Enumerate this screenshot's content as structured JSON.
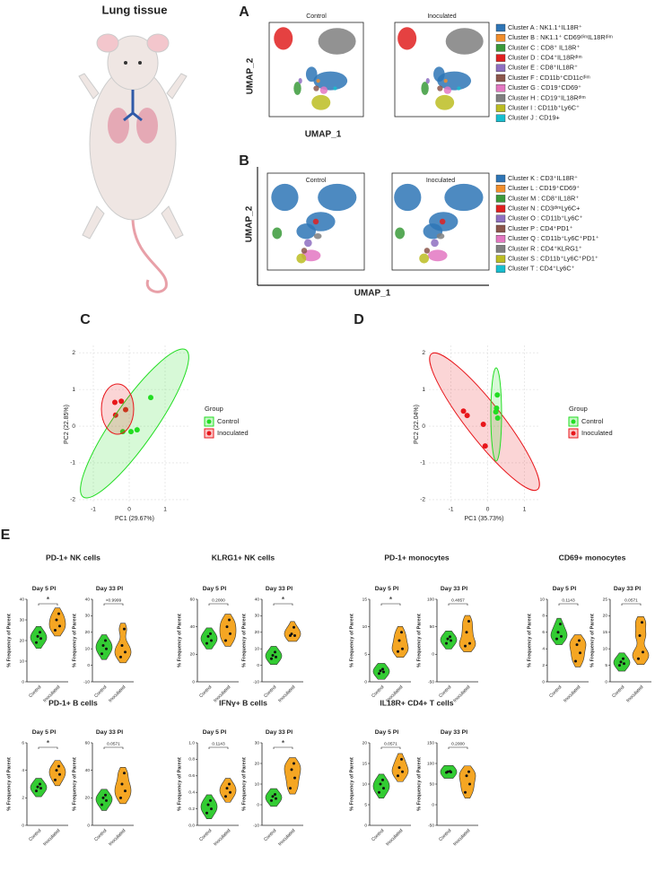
{
  "figure": {
    "panel_labels": [
      "A",
      "B",
      "C",
      "D",
      "E"
    ],
    "tissue_label": "Lung tissue",
    "umap_panels": [
      {
        "conditions": [
          "Control",
          "Inoculated"
        ],
        "x_label": "UMAP_1",
        "y_label": "UMAP_2",
        "clusters": [
          {
            "name": "Cluster A : NK1.1⁺IL18R⁺",
            "color": "#2e75b6"
          },
          {
            "name": "Cluster B : NK1.1⁺ CD69ᵈⁱᵐIL18Rᵈⁱᵐ",
            "color": "#f28e2b"
          },
          {
            "name": "Cluster C : CD8⁺ IL18R⁺",
            "color": "#3a9a3a"
          },
          {
            "name": "Cluster D : CD4⁺IL18Rᵈⁱᵐ",
            "color": "#e02020"
          },
          {
            "name": "Cluster E : CD8⁺IL18R⁺",
            "color": "#8e6fc1"
          },
          {
            "name": "Cluster F : CD11b⁺CD11cᵈⁱᵐ",
            "color": "#8c564b"
          },
          {
            "name": "Cluster G : CD19⁺CD69⁺",
            "color": "#e377c2"
          },
          {
            "name": "Cluster H : CD19⁺IL18Rᵈⁱᵐ",
            "color": "#7f7f7f"
          },
          {
            "name": "Cluster I : CD11b⁺Ly6C⁺",
            "color": "#bcbd22"
          },
          {
            "name": "Cluster J : CD19+",
            "color": "#17becf"
          }
        ]
      },
      {
        "conditions": [
          "Control",
          "Inoculated"
        ],
        "x_label": "UMAP_1",
        "y_label": "UMAP_2",
        "clusters": [
          {
            "name": "Cluster K : CD3⁺IL18R⁺",
            "color": "#2e75b6"
          },
          {
            "name": "Cluster L : CD19⁺CD69⁺",
            "color": "#f28e2b"
          },
          {
            "name": "Cluster M : CD8⁺IL18R⁺",
            "color": "#3a9a3a"
          },
          {
            "name": "Cluster N : CD3ᵈⁱᵐLy6C+",
            "color": "#e02020"
          },
          {
            "name": "Cluster O : CD11b⁺Ly6C⁺",
            "color": "#8e6fc1"
          },
          {
            "name": "Cluster P : CD4⁺PD1⁺",
            "color": "#8c564b"
          },
          {
            "name": "Cluster Q : CD11b⁺Ly6C⁺PD1⁺",
            "color": "#e377c2"
          },
          {
            "name": "Cluster R : CD4⁺KLRG1⁺",
            "color": "#7f7f7f"
          },
          {
            "name": "Cluster S : CD11b⁺Ly6C⁺PD1⁺",
            "color": "#bcbd22"
          },
          {
            "name": "Cluster T : CD4⁺Ly6C⁺",
            "color": "#17becf"
          }
        ]
      }
    ]
  },
  "chart_data": [
    {
      "type": "scatter",
      "x_label": "PC1 (29.67%)",
      "y_label": "PC2 (22.85%)",
      "xlim": [
        -1.4,
        1.7
      ],
      "ylim": [
        -2.1,
        2.2
      ],
      "xticks": [
        -1,
        0,
        1
      ],
      "yticks": [
        -2,
        -1,
        0,
        1,
        2
      ],
      "grid": true,
      "legend_title": "Group",
      "series": [
        {
          "name": "Control",
          "color": "#22dd22",
          "x": [
            0.6,
            -0.18,
            0.05,
            0.22
          ],
          "y": [
            0.78,
            -0.15,
            -0.15,
            -0.1
          ]
        },
        {
          "name": "Inoculated",
          "color": "#e8161b",
          "x": [
            -0.4,
            -0.22,
            -0.38,
            -0.1
          ],
          "y": [
            0.65,
            0.68,
            0.3,
            0.45
          ]
        }
      ]
    },
    {
      "type": "scatter",
      "x_label": "PC1 (35.73%)",
      "y_label": "PC2 (22.04%)",
      "xlim": [
        -1.6,
        1.4
      ],
      "ylim": [
        -2.1,
        2.2
      ],
      "xticks": [
        -1,
        0,
        1
      ],
      "yticks": [
        -2,
        -1,
        0,
        1,
        2
      ],
      "grid": true,
      "legend_title": "Group",
      "series": [
        {
          "name": "Control",
          "color": "#22dd22",
          "x": [
            0.26,
            0.24,
            0.22,
            0.27
          ],
          "y": [
            0.85,
            0.49,
            0.39,
            0.22
          ]
        },
        {
          "name": "Inoculated",
          "color": "#e8161b",
          "x": [
            -0.66,
            -0.56,
            -0.12,
            -0.07
          ],
          "y": [
            0.41,
            0.29,
            0.05,
            -0.54
          ]
        }
      ]
    },
    {
      "type": "violin_group",
      "title": "PD-1+ NK cells",
      "charts": [
        {
          "type": "violin",
          "subtitle": "Day 5 PI",
          "y_label": "% Frequency of Parent",
          "categories": [
            "Control",
            "Inoculated"
          ],
          "colors": [
            "#33cc33",
            "#f5a623"
          ],
          "ylim": [
            0,
            40
          ],
          "yticks": [
            0,
            10,
            20,
            30,
            40
          ],
          "values": [
            [
              19,
              21,
              22,
              24
            ],
            [
              25,
              27,
              30,
              33
            ]
          ],
          "annotation": "*"
        },
        {
          "type": "violin",
          "subtitle": "Day 33 PI",
          "y_label": "% Frequency of Parent",
          "categories": [
            "Control",
            "Inoculated"
          ],
          "colors": [
            "#33cc33",
            "#f5a623"
          ],
          "ylim": [
            -10,
            40
          ],
          "yticks": [
            -10,
            0,
            10,
            20,
            30,
            40
          ],
          "values": [
            [
              7,
              10,
              12,
              15
            ],
            [
              5,
              8,
              12,
              22
            ]
          ],
          "annotation": ">0.9999"
        }
      ]
    },
    {
      "type": "violin_group",
      "title": "KLRG1+ NK cells",
      "charts": [
        {
          "type": "violin",
          "subtitle": "Day 5 PI",
          "y_label": "% Frequency of Parent",
          "categories": [
            "Control",
            "Inoculated"
          ],
          "colors": [
            "#33cc33",
            "#f5a623"
          ],
          "ylim": [
            0,
            60
          ],
          "yticks": [
            0,
            20,
            40,
            60
          ],
          "values": [
            [
              28,
              30,
              33,
              35
            ],
            [
              30,
              35,
              40,
              45
            ]
          ],
          "annotation": "0.2000"
        },
        {
          "type": "violin",
          "subtitle": "Day 33 PI",
          "y_label": "% Frequency of Parent",
          "categories": [
            "Control",
            "Inoculated"
          ],
          "colors": [
            "#33cc33",
            "#f5a623"
          ],
          "ylim": [
            -10,
            40
          ],
          "yticks": [
            -10,
            0,
            10,
            20,
            30,
            40
          ],
          "values": [
            [
              4,
              5,
              6,
              8
            ],
            [
              18,
              18,
              19,
              23
            ]
          ],
          "annotation": "*"
        }
      ]
    },
    {
      "type": "violin_group",
      "title": "PD-1+ monocytes",
      "charts": [
        {
          "type": "violin",
          "subtitle": "Day 5 PI",
          "y_label": "% Frequency of Parent",
          "categories": [
            "Control",
            "Inoculated"
          ],
          "colors": [
            "#33cc33",
            "#f5a623"
          ],
          "ylim": [
            0,
            15
          ],
          "yticks": [
            0,
            5,
            10,
            15
          ],
          "values": [
            [
              1.5,
              1.8,
              2,
              2.3
            ],
            [
              5.5,
              6,
              7.5,
              9
            ]
          ],
          "annotation": "*"
        },
        {
          "type": "violin",
          "subtitle": "Day 33 PI",
          "y_label": "% Frequency of Parent",
          "categories": [
            "Control",
            "Inoculated"
          ],
          "colors": [
            "#33cc33",
            "#f5a623"
          ],
          "ylim": [
            -50,
            100
          ],
          "yticks": [
            -50,
            0,
            50,
            100
          ],
          "values": [
            [
              20,
              25,
              28,
              32
            ],
            [
              15,
              20,
              40,
              60
            ]
          ],
          "annotation": "0.4857"
        }
      ]
    },
    {
      "type": "violin_group",
      "title": "CD69+ monocytes",
      "charts": [
        {
          "type": "violin",
          "subtitle": "Day 5 PI",
          "y_label": "% Frequency of Parent",
          "categories": [
            "Control",
            "Inoculated"
          ],
          "colors": [
            "#33cc33",
            "#f5a623"
          ],
          "ylim": [
            0,
            10
          ],
          "yticks": [
            0,
            2,
            4,
            6,
            8,
            10
          ],
          "values": [
            [
              5.2,
              5.5,
              6,
              7
            ],
            [
              2.5,
              3.5,
              4.5,
              5
            ]
          ],
          "annotation": "0.1143"
        },
        {
          "type": "violin",
          "subtitle": "Day 33 PI",
          "y_label": "% Frequency of Parent",
          "categories": [
            "Control",
            "Inoculated"
          ],
          "colors": [
            "#33cc33",
            "#f5a623"
          ],
          "ylim": [
            0,
            25
          ],
          "yticks": [
            0,
            5,
            10,
            15,
            20,
            25
          ],
          "values": [
            [
              5,
              5.5,
              6,
              7
            ],
            [
              7,
              9,
              14,
              18
            ]
          ],
          "annotation": "0.0571"
        }
      ]
    },
    {
      "type": "violin_group",
      "title": "PD-1+ B cells",
      "charts": [
        {
          "type": "violin",
          "subtitle": "Day 5 PI",
          "y_label": "% Frequency of Parent",
          "categories": [
            "Control",
            "Inoculated"
          ],
          "colors": [
            "#33cc33",
            "#f5a623"
          ],
          "ylim": [
            0,
            6
          ],
          "yticks": [
            0,
            2,
            4,
            6
          ],
          "values": [
            [
              2.5,
              2.7,
              2.8,
              3
            ],
            [
              3.3,
              3.7,
              4,
              4.3
            ]
          ],
          "annotation": "*"
        },
        {
          "type": "violin",
          "subtitle": "Day 33 PI",
          "y_label": "% Frequency of Parent",
          "categories": [
            "Control",
            "Inoculated"
          ],
          "colors": [
            "#33cc33",
            "#f5a623"
          ],
          "ylim": [
            0,
            60
          ],
          "yticks": [
            0,
            20,
            40,
            60
          ],
          "values": [
            [
              15,
              18,
              20,
              22
            ],
            [
              20,
              25,
              30,
              38
            ]
          ],
          "annotation": "0.0571"
        }
      ]
    },
    {
      "type": "violin_group",
      "title": "IFNγ+ B cells",
      "charts": [
        {
          "type": "violin",
          "subtitle": "Day 5 PI",
          "y_label": "% Frequency of Parent",
          "categories": [
            "Control",
            "Inoculated"
          ],
          "colors": [
            "#33cc33",
            "#f5a623"
          ],
          "ylim": [
            0,
            1
          ],
          "yticks": [
            {
              "value": 0,
              "label": "0.0"
            },
            0.2,
            0.4,
            0.6,
            0.8,
            {
              "value": 1,
              "label": "1.0"
            }
          ],
          "values": [
            [
              0.15,
              0.2,
              0.25,
              0.3
            ],
            [
              0.35,
              0.4,
              0.45,
              0.5
            ]
          ],
          "annotation": "0.1143"
        },
        {
          "type": "violin",
          "subtitle": "Day 33 PI",
          "y_label": "% Frequency of Parent",
          "categories": [
            "Control",
            "Inoculated"
          ],
          "colors": [
            "#33cc33",
            "#f5a623"
          ],
          "ylim": [
            -10,
            30
          ],
          "yticks": [
            -10,
            0,
            10,
            20,
            30
          ],
          "values": [
            [
              2,
              3,
              4,
              5
            ],
            [
              8,
              13,
              17,
              20
            ]
          ],
          "annotation": "*"
        }
      ]
    },
    {
      "type": "violin_group",
      "title": "IL18R+ CD4+ T cells",
      "charts": [
        {
          "type": "violin",
          "subtitle": "Day 5 PI",
          "y_label": "% Frequency of Parent",
          "categories": [
            "Control",
            "Inoculated"
          ],
          "colors": [
            "#33cc33",
            "#f5a623"
          ],
          "ylim": [
            0,
            20
          ],
          "yticks": [
            0,
            5,
            10,
            15,
            20
          ],
          "values": [
            [
              8,
              9,
              10,
              11
            ],
            [
              12,
              13,
              14,
              16
            ]
          ],
          "annotation": "0.0571"
        },
        {
          "type": "violin",
          "subtitle": "Day 33 PI",
          "y_label": "% Frequency of Parent",
          "categories": [
            "Control",
            "Inoculated"
          ],
          "colors": [
            "#33cc33",
            "#f5a623"
          ],
          "ylim": [
            -50,
            150
          ],
          "yticks": [
            -50,
            0,
            50,
            100,
            150
          ],
          "values": [
            [
              78,
              79,
              80,
              81
            ],
            [
              30,
              50,
              70,
              80
            ]
          ],
          "annotation": "0.2000"
        }
      ]
    }
  ]
}
